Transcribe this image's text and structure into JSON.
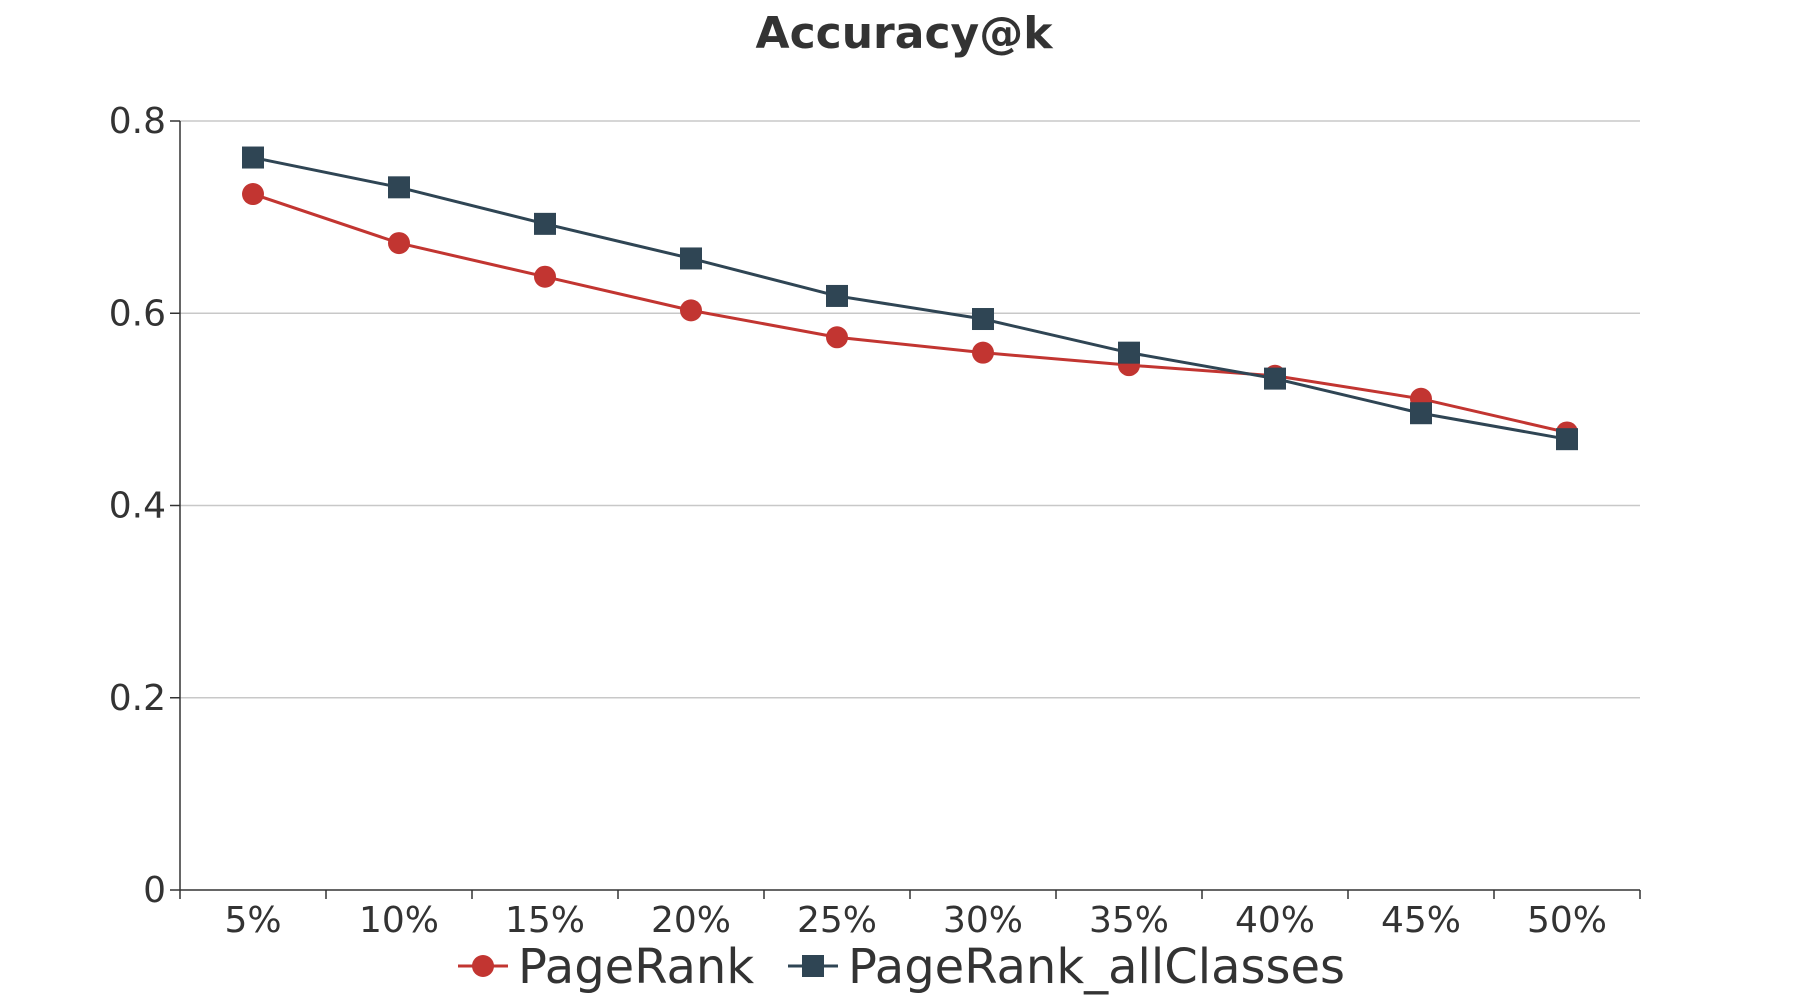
{
  "chart_data": {
    "type": "line",
    "title": "Accuracy@k",
    "xlabel": "",
    "ylabel": "",
    "categories": [
      "5%",
      "10%",
      "15%",
      "20%",
      "25%",
      "30%",
      "35%",
      "40%",
      "45%",
      "50%"
    ],
    "ylim": [
      0,
      0.8
    ],
    "yticks": [
      "0",
      "0.2",
      "0.4",
      "0.6",
      "0.8"
    ],
    "grid": true,
    "legend_position": "bottom-center",
    "series": [
      {
        "name": "PageRank",
        "color": "#c23531",
        "marker": "circle",
        "values": [
          0.724,
          0.673,
          0.638,
          0.603,
          0.575,
          0.559,
          0.546,
          0.535,
          0.511,
          0.476
        ]
      },
      {
        "name": "PageRank_allClasses",
        "color": "#2f4554",
        "marker": "square",
        "values": [
          0.762,
          0.731,
          0.693,
          0.657,
          0.618,
          0.594,
          0.559,
          0.532,
          0.496,
          0.469
        ]
      }
    ]
  }
}
